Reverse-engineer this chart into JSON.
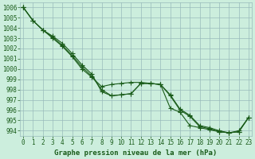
{
  "title": "Graphe pression niveau de la mer (hPa)",
  "x": [
    0,
    1,
    2,
    3,
    4,
    5,
    6,
    7,
    8,
    9,
    10,
    11,
    12,
    13,
    14,
    15,
    16,
    17,
    18,
    19,
    20,
    21,
    22,
    23
  ],
  "line1": [
    1006.0,
    1004.7,
    1003.8,
    1003.0,
    1002.2,
    1001.2,
    1000.0,
    999.2,
    998.3,
    998.5,
    998.6,
    998.7,
    998.7,
    998.6,
    998.5,
    996.2,
    995.8,
    994.5,
    994.3,
    994.1,
    993.9,
    993.8,
    993.9,
    995.3
  ],
  "line2": [
    1006.0,
    1004.7,
    1003.8,
    1003.2,
    1002.5,
    1001.5,
    1000.4,
    999.5,
    997.8,
    997.4,
    997.5,
    997.6,
    998.6,
    998.6,
    998.5,
    997.5,
    996.1,
    995.5,
    994.5,
    994.3,
    994.0,
    993.8,
    994.0,
    995.3
  ],
  "line3": [
    1006.0,
    1004.7,
    1003.8,
    1003.1,
    1002.3,
    1001.3,
    1000.2,
    999.3,
    998.0,
    997.4,
    997.5,
    997.6,
    998.6,
    998.6,
    998.5,
    997.4,
    996.0,
    995.4,
    994.4,
    994.2,
    993.9,
    993.8,
    993.9,
    995.3
  ],
  "ylim_min": 993.5,
  "ylim_max": 1006.5,
  "yticks": [
    994,
    995,
    996,
    997,
    998,
    999,
    1000,
    1001,
    1002,
    1003,
    1004,
    1005,
    1006
  ],
  "xticks": [
    0,
    1,
    2,
    3,
    4,
    5,
    6,
    7,
    8,
    9,
    10,
    11,
    12,
    13,
    14,
    15,
    16,
    17,
    18,
    19,
    20,
    21,
    22,
    23
  ],
  "line_color": "#1a5c1a",
  "bg_color": "#cceedd",
  "grid_color": "#99bbbb",
  "marker": "+",
  "marker_size": 4,
  "line_width": 0.8,
  "tick_fontsize": 5.5,
  "xlabel_fontsize": 6.5
}
